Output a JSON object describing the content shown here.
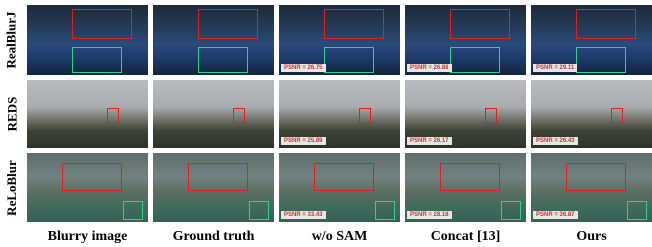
{
  "rows": [
    {
      "label": "RealBlurJ",
      "psnr": [
        "PSNR = 26.75",
        "PSNR = 26.88",
        "PSNR = 29.11"
      ]
    },
    {
      "label": "REDS",
      "psnr": [
        "PSNR = 25.89",
        "PSNR = 26.17",
        "PSNR = 26.43"
      ]
    },
    {
      "label": "ReLoBlur",
      "psnr": [
        "PSNR = 33.43",
        "PSNR = 28.18",
        "PSNR = 36.87"
      ]
    }
  ],
  "columns": [
    "Blurry image",
    "Ground truth",
    "w/o SAM",
    "Concat [13]",
    "Ours"
  ]
}
